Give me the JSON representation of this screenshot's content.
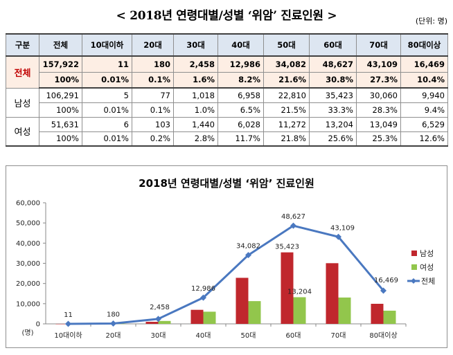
{
  "page": {
    "title": "< 2018년 연령대별/성별 ‘위암’ 진료인원 >",
    "unit": "(단위: 명)"
  },
  "table": {
    "headers": [
      "구분",
      "전체",
      "10대이하",
      "20대",
      "30대",
      "40대",
      "50대",
      "60대",
      "70대",
      "80대이상"
    ],
    "rows": [
      {
        "group": "전체",
        "counts": [
          "157,922",
          "11",
          "180",
          "2,458",
          "12,986",
          "34,082",
          "48,627",
          "43,109",
          "16,469"
        ],
        "shares": [
          "100%",
          "0.01%",
          "0.1%",
          "1.6%",
          "8.2%",
          "21.6%",
          "30.8%",
          "27.3%",
          "10.4%"
        ]
      },
      {
        "group": "남성",
        "counts": [
          "106,291",
          "5",
          "77",
          "1,018",
          "6,958",
          "22,810",
          "35,423",
          "30,060",
          "9,940"
        ],
        "shares": [
          "100%",
          "0.01%",
          "0.1%",
          "1.0%",
          "6.5%",
          "21.5%",
          "33.3%",
          "28.3%",
          "9.4%"
        ]
      },
      {
        "group": "여성",
        "counts": [
          "51,631",
          "6",
          "103",
          "1,440",
          "6,028",
          "11,272",
          "13,204",
          "13,049",
          "6,529"
        ],
        "shares": [
          "100%",
          "0.01%",
          "0.2%",
          "2.8%",
          "11.7%",
          "21.8%",
          "25.6%",
          "25.3%",
          "12.6%"
        ]
      }
    ]
  },
  "chart_data": {
    "type": "bar",
    "title": "2018년 연령대별/성별 ‘위암’ 진료인원",
    "ylabel": "(명)",
    "categories": [
      "10대이하",
      "20대",
      "30대",
      "40대",
      "50대",
      "60대",
      "70대",
      "80대이상"
    ],
    "ylim": [
      0,
      60000
    ],
    "yticks": [
      0,
      10000,
      20000,
      30000,
      40000,
      50000,
      60000
    ],
    "ytick_labels": [
      "0",
      "10,000",
      "20,000",
      "30,000",
      "40,000",
      "50,000",
      "60,000"
    ],
    "grid": false,
    "legend": "right",
    "series": [
      {
        "name": "남성",
        "type": "bar",
        "color": "#c0272d",
        "values": [
          5,
          77,
          1018,
          6958,
          22810,
          35423,
          30060,
          9940
        ],
        "data_labels": {
          "5": "35,423"
        }
      },
      {
        "name": "여성",
        "type": "bar",
        "color": "#92c64c",
        "values": [
          6,
          103,
          1440,
          6028,
          11272,
          13204,
          13049,
          6529
        ],
        "data_labels": {
          "5": "13,204"
        }
      },
      {
        "name": "전체",
        "type": "line",
        "color": "#4a78c0",
        "values": [
          11,
          180,
          2458,
          12986,
          34082,
          48627,
          43109,
          16469
        ],
        "data_labels": [
          "11",
          "180",
          "2,458",
          "12,986",
          "34,082",
          "48,627",
          "43,109",
          "16,469"
        ]
      }
    ]
  }
}
